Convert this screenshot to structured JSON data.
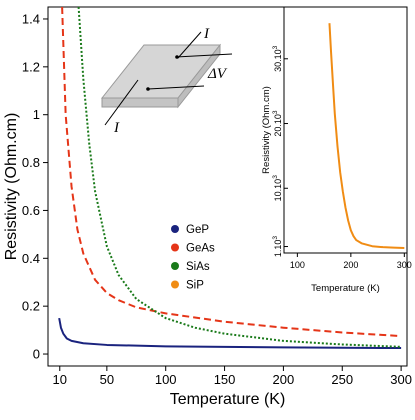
{
  "chart_data": [
    {
      "type": "line",
      "xlabel": "Temperature (K)",
      "ylabel": "Resistivity (Ohm.cm)",
      "xlim": [
        0,
        305
      ],
      "ylim": [
        -0.05,
        1.45
      ],
      "xticks": [
        10,
        50,
        100,
        150,
        200,
        250,
        300
      ],
      "yticks": [
        0,
        0.2,
        0.4,
        0.6,
        0.8,
        1.0,
        1.2,
        1.4
      ],
      "ytick_labels": [
        "0",
        "0.2",
        "0.4",
        "0.6",
        "0.8",
        "1",
        "1.2",
        "1.4"
      ],
      "legend": {
        "placement": "center-right",
        "entries": [
          {
            "label": "GeP",
            "color": "#1a237e"
          },
          {
            "label": "GeAs",
            "color": "#e53518"
          },
          {
            "label": "SiAs",
            "color": "#1a7a1a"
          },
          {
            "label": "SiP",
            "color": "#f08c14"
          }
        ]
      },
      "series": [
        {
          "name": "GeP",
          "color": "#1a237e",
          "style": "solid",
          "x": [
            9.5,
            11,
            13,
            16,
            20,
            30,
            50,
            100,
            150,
            200,
            250,
            300
          ],
          "y": [
            0.15,
            0.11,
            0.085,
            0.065,
            0.055,
            0.045,
            0.038,
            0.032,
            0.03,
            0.028,
            0.026,
            0.025
          ]
        },
        {
          "name": "GeAs",
          "color": "#e53518",
          "style": "dashed",
          "x": [
            12,
            15,
            20,
            25,
            30,
            40,
            50,
            60,
            75,
            100,
            150,
            200,
            250,
            300
          ],
          "y": [
            1.45,
            1.0,
            0.7,
            0.52,
            0.42,
            0.31,
            0.255,
            0.225,
            0.195,
            0.17,
            0.135,
            0.11,
            0.09,
            0.075
          ]
        },
        {
          "name": "SiAs",
          "color": "#1a7a1a",
          "style": "dotted",
          "x": [
            26,
            30,
            35,
            40,
            50,
            60,
            75,
            100,
            125,
            150,
            200,
            250,
            300
          ],
          "y": [
            1.45,
            1.15,
            0.88,
            0.68,
            0.45,
            0.33,
            0.23,
            0.15,
            0.11,
            0.085,
            0.055,
            0.04,
            0.03
          ]
        }
      ]
    },
    {
      "type": "line",
      "xlabel": "Temperature (K)",
      "ylabel": "Resistivity (Ohm.cm)",
      "xlim": [
        75,
        305
      ],
      "ylim": [
        0,
        38000
      ],
      "xticks": [
        100,
        200,
        300
      ],
      "yticks": [
        1000,
        10000,
        20000,
        30000
      ],
      "ytick_labels": [
        "1.10",
        "10.10",
        "20.10",
        "30.10"
      ],
      "ytick_exponent": "3",
      "series": [
        {
          "name": "SiP",
          "color": "#f08c14",
          "style": "solid",
          "x": [
            160,
            163,
            167,
            170,
            175,
            180,
            185,
            190,
            195,
            200,
            205,
            210,
            220,
            240,
            260,
            280,
            300
          ],
          "y": [
            35500,
            31000,
            25500,
            21500,
            16500,
            12500,
            9500,
            7000,
            5000,
            3500,
            2600,
            2000,
            1500,
            1050,
            900,
            830,
            780
          ]
        }
      ]
    }
  ],
  "diagram": {
    "current_label": "I",
    "voltage_label": "ΔV"
  }
}
